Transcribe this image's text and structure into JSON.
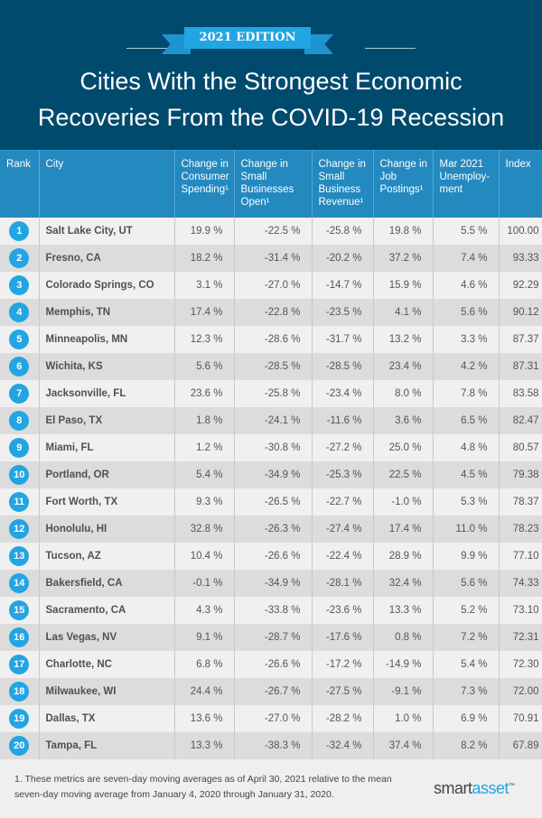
{
  "header": {
    "edition": "2021 EDITION",
    "title_line1": "Cities With the Strongest Economic",
    "title_line2": "Recoveries From the COVID-19 Recession"
  },
  "colors": {
    "header_bg": "#004a6e",
    "table_header_bg": "#2489bf",
    "accent": "#22a5e2"
  },
  "chart_data": {
    "type": "table",
    "title": "Cities With the Strongest Economic Recoveries From the COVID-19 Recession",
    "columns": [
      "Rank",
      "City",
      "Change in Consumer Spending¹",
      "Change in Small Businesses Open¹",
      "Change in Small Business Revenue¹",
      "Change in Job Postings¹",
      "Mar 2021 Unemploy- ment",
      "Index"
    ],
    "rows": [
      [
        "1",
        "Salt Lake City, UT",
        "19.9 %",
        "-22.5 %",
        "-25.8 %",
        "19.8 %",
        "5.5 %",
        "100.00"
      ],
      [
        "2",
        "Fresno, CA",
        "18.2 %",
        "-31.4 %",
        "-20.2 %",
        "37.2 %",
        "7.4 %",
        "93.33"
      ],
      [
        "3",
        "Colorado Springs, CO",
        "3.1 %",
        "-27.0 %",
        "-14.7 %",
        "15.9 %",
        "4.6 %",
        "92.29"
      ],
      [
        "4",
        "Memphis, TN",
        "17.4 %",
        "-22.8 %",
        "-23.5 %",
        "4.1 %",
        "5.6 %",
        "90.12"
      ],
      [
        "5",
        "Minneapolis, MN",
        "12.3 %",
        "-28.6 %",
        "-31.7 %",
        "13.2 %",
        "3.3 %",
        "87.37"
      ],
      [
        "6",
        "Wichita, KS",
        "5.6 %",
        "-28.5 %",
        "-28.5 %",
        "23.4 %",
        "4.2 %",
        "87.31"
      ],
      [
        "7",
        "Jacksonville, FL",
        "23.6 %",
        "-25.8 %",
        "-23.4 %",
        "8.0 %",
        "7.8 %",
        "83.58"
      ],
      [
        "8",
        "El Paso, TX",
        "1.8 %",
        "-24.1 %",
        "-11.6 %",
        "3.6 %",
        "6.5 %",
        "82.47"
      ],
      [
        "9",
        "Miami, FL",
        "1.2 %",
        "-30.8 %",
        "-27.2 %",
        "25.0 %",
        "4.8 %",
        "80.57"
      ],
      [
        "10",
        "Portland, OR",
        "5.4 %",
        "-34.9 %",
        "-25.3 %",
        "22.5 %",
        "4.5 %",
        "79.38"
      ],
      [
        "11",
        "Fort Worth, TX",
        "9.3 %",
        "-26.5 %",
        "-22.7 %",
        "-1.0 %",
        "5.3 %",
        "78.37"
      ],
      [
        "12",
        "Honolulu, HI",
        "32.8 %",
        "-26.3 %",
        "-27.4 %",
        "17.4 %",
        "11.0 %",
        "78.23"
      ],
      [
        "13",
        "Tucson, AZ",
        "10.4 %",
        "-26.6 %",
        "-22.4 %",
        "28.9 %",
        "9.9 %",
        "77.10"
      ],
      [
        "14",
        "Bakersfield, CA",
        "-0.1 %",
        "-34.9 %",
        "-28.1 %",
        "32.4 %",
        "5.6 %",
        "74.33"
      ],
      [
        "15",
        "Sacramento, CA",
        "4.3 %",
        "-33.8 %",
        "-23.6 %",
        "13.3 %",
        "5.2 %",
        "73.10"
      ],
      [
        "16",
        "Las Vegas, NV",
        "9.1 %",
        "-28.7 %",
        "-17.6 %",
        "0.8 %",
        "7.2 %",
        "72.31"
      ],
      [
        "17",
        "Charlotte, NC",
        "6.8 %",
        "-26.6 %",
        "-17.2 %",
        "-14.9 %",
        "5.4 %",
        "72.30"
      ],
      [
        "18",
        "Milwaukee, WI",
        "24.4 %",
        "-26.7 %",
        "-27.5 %",
        "-9.1 %",
        "7.3 %",
        "72.00"
      ],
      [
        "19",
        "Dallas, TX",
        "13.6 %",
        "-27.0 %",
        "-28.2 %",
        "1.0 %",
        "6.9 %",
        "70.91"
      ],
      [
        "20",
        "Tampa, FL",
        "13.3 %",
        "-38.3 %",
        "-32.4 %",
        "37.4 %",
        "8.2 %",
        "67.89"
      ]
    ]
  },
  "footer": {
    "footnote": "1. These metrics are seven-day moving averages as of April 30, 2021 relative to the mean seven-day moving average from January 4, 2020 through January 31, 2020.",
    "logo_part1": "smart",
    "logo_part2": "asset",
    "logo_tm": "™"
  }
}
